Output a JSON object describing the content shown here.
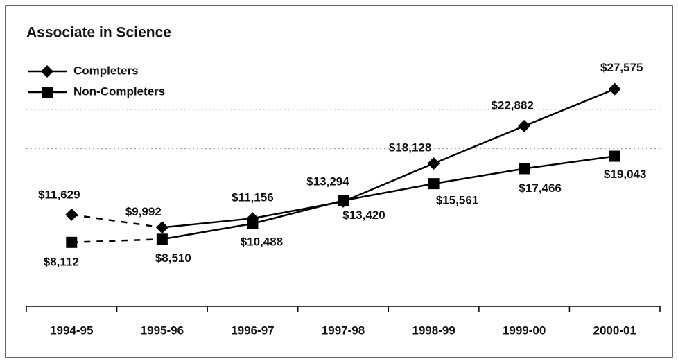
{
  "chart_data": {
    "type": "line",
    "title": "Associate in Science",
    "categories": [
      "1994-95",
      "1995-96",
      "1996-97",
      "1997-98",
      "1998-99",
      "1999-00",
      "2000-01"
    ],
    "series": [
      {
        "name": "Completers",
        "color": "#000000",
        "marker": "diamond",
        "values": [
          11629,
          9992,
          11156,
          13294,
          18128,
          22882,
          27575
        ],
        "value_labels": [
          "$11,629",
          "$9,992",
          "$11,156",
          "$13,294",
          "$18,128",
          "$22,882",
          "$27,575"
        ]
      },
      {
        "name": "Non-Completers",
        "color": "#000000",
        "marker": "square",
        "values": [
          8112,
          8510,
          10488,
          13420,
          15561,
          17466,
          19043
        ],
        "value_labels": [
          "$8,112",
          "$8,510",
          "$10,488",
          "$13,420",
          "$15,561",
          "$17,466",
          "$19,043"
        ]
      }
    ],
    "dashed_segments": [
      0
    ],
    "ylim": [
      0,
      30000
    ],
    "yticks": [
      15000,
      20000,
      25000
    ],
    "grid": true,
    "legend": "top-left"
  }
}
